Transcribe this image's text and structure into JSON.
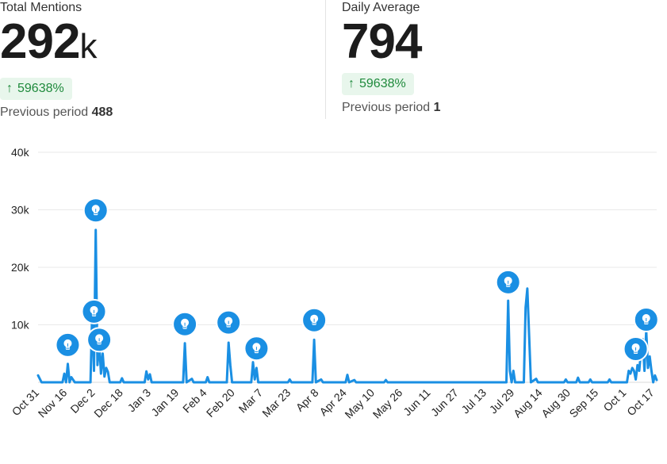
{
  "stats": {
    "total": {
      "label": "Total Mentions",
      "value": "292",
      "unit": "k",
      "change": "59638%",
      "previous_label": "Previous period",
      "previous_value": "488"
    },
    "daily": {
      "label": "Daily Average",
      "value": "794",
      "change": "59638%",
      "previous_label": "Previous period",
      "previous_value": "1"
    }
  },
  "colors": {
    "line": "#1a8fe3",
    "badge_bg": "#e8f6ec",
    "badge_text": "#1f8a3c",
    "grid": "#e9e9e9"
  },
  "chart_data": {
    "type": "line",
    "title": "",
    "xlabel": "",
    "ylabel": "",
    "ylim": [
      0,
      40000
    ],
    "yticks": [
      10000,
      20000,
      30000,
      40000
    ],
    "ytick_labels": [
      "10k",
      "20k",
      "30k",
      "40k"
    ],
    "xtick_labels": [
      "Oct 31",
      "Nov 16",
      "Dec 2",
      "Dec 18",
      "Jan 3",
      "Jan 19",
      "Feb 4",
      "Feb 20",
      "Mar 7",
      "Mar 23",
      "Apr 8",
      "Apr 24",
      "May 10",
      "May 26",
      "Jun 11",
      "Jun 27",
      "Jul 13",
      "Jul 29",
      "Aug 14",
      "Aug 30",
      "Sep 15",
      "Oct 1",
      "Oct 17"
    ],
    "grid": true,
    "series": [
      {
        "values": [
          {
            "day": 0,
            "y": 1200
          },
          {
            "day": 2,
            "y": 0
          },
          {
            "day": 14,
            "y": 0
          },
          {
            "day": 15,
            "y": 1500
          },
          {
            "day": 16,
            "y": 0
          },
          {
            "day": 17,
            "y": 3200
          },
          {
            "day": 18,
            "y": 0
          },
          {
            "day": 19,
            "y": 900
          },
          {
            "day": 21,
            "y": 0
          },
          {
            "day": 30,
            "y": 0
          },
          {
            "day": 31,
            "y": 12500
          },
          {
            "day": 32,
            "y": 2000
          },
          {
            "day": 33,
            "y": 26500
          },
          {
            "day": 34,
            "y": 3000
          },
          {
            "day": 35,
            "y": 7000
          },
          {
            "day": 36,
            "y": 1500
          },
          {
            "day": 37,
            "y": 5000
          },
          {
            "day": 38,
            "y": 1000
          },
          {
            "day": 39,
            "y": 2500
          },
          {
            "day": 40,
            "y": 1800
          },
          {
            "day": 41,
            "y": 0
          },
          {
            "day": 47,
            "y": 0
          },
          {
            "day": 48,
            "y": 700
          },
          {
            "day": 49,
            "y": 0
          },
          {
            "day": 61,
            "y": 0
          },
          {
            "day": 62,
            "y": 1900
          },
          {
            "day": 63,
            "y": 500
          },
          {
            "day": 64,
            "y": 1400
          },
          {
            "day": 65,
            "y": 0
          },
          {
            "day": 83,
            "y": 0
          },
          {
            "day": 84,
            "y": 6800
          },
          {
            "day": 85,
            "y": 0
          },
          {
            "day": 88,
            "y": 600
          },
          {
            "day": 89,
            "y": 0
          },
          {
            "day": 96,
            "y": 0
          },
          {
            "day": 97,
            "y": 900
          },
          {
            "day": 98,
            "y": 0
          },
          {
            "day": 108,
            "y": 0
          },
          {
            "day": 109,
            "y": 6900
          },
          {
            "day": 110,
            "y": 3000
          },
          {
            "day": 111,
            "y": 0
          },
          {
            "day": 122,
            "y": 0
          },
          {
            "day": 123,
            "y": 3500
          },
          {
            "day": 124,
            "y": 500
          },
          {
            "day": 125,
            "y": 2500
          },
          {
            "day": 126,
            "y": 0
          },
          {
            "day": 143,
            "y": 0
          },
          {
            "day": 144,
            "y": 500
          },
          {
            "day": 145,
            "y": 0
          },
          {
            "day": 157,
            "y": 0
          },
          {
            "day": 158,
            "y": 7400
          },
          {
            "day": 159,
            "y": 0
          },
          {
            "day": 162,
            "y": 500
          },
          {
            "day": 163,
            "y": 0
          },
          {
            "day": 176,
            "y": 0
          },
          {
            "day": 177,
            "y": 1300
          },
          {
            "day": 178,
            "y": 0
          },
          {
            "day": 181,
            "y": 400
          },
          {
            "day": 182,
            "y": 0
          },
          {
            "day": 198,
            "y": 0
          },
          {
            "day": 199,
            "y": 400
          },
          {
            "day": 200,
            "y": 0
          },
          {
            "day": 268,
            "y": 0
          },
          {
            "day": 269,
            "y": 14200
          },
          {
            "day": 270,
            "y": 2000
          },
          {
            "day": 271,
            "y": 0
          },
          {
            "day": 272,
            "y": 2000
          },
          {
            "day": 273,
            "y": 0
          },
          {
            "day": 278,
            "y": 0
          },
          {
            "day": 279,
            "y": 13000
          },
          {
            "day": 280,
            "y": 16300
          },
          {
            "day": 281,
            "y": 8000
          },
          {
            "day": 282,
            "y": 0
          },
          {
            "day": 285,
            "y": 600
          },
          {
            "day": 286,
            "y": 0
          },
          {
            "day": 301,
            "y": 0
          },
          {
            "day": 302,
            "y": 500
          },
          {
            "day": 303,
            "y": 0
          },
          {
            "day": 308,
            "y": 0
          },
          {
            "day": 309,
            "y": 800
          },
          {
            "day": 310,
            "y": 0
          },
          {
            "day": 315,
            "y": 0
          },
          {
            "day": 316,
            "y": 500
          },
          {
            "day": 317,
            "y": 0
          },
          {
            "day": 326,
            "y": 0
          },
          {
            "day": 327,
            "y": 500
          },
          {
            "day": 328,
            "y": 0
          },
          {
            "day": 337,
            "y": 0
          },
          {
            "day": 338,
            "y": 2000
          },
          {
            "day": 339,
            "y": 1500
          },
          {
            "day": 340,
            "y": 2500
          },
          {
            "day": 341,
            "y": 2000
          },
          {
            "day": 342,
            "y": 500
          },
          {
            "day": 343,
            "y": 3000
          },
          {
            "day": 344,
            "y": 2000
          },
          {
            "day": 345,
            "y": 5500
          },
          {
            "day": 346,
            "y": 7500
          },
          {
            "day": 347,
            "y": 2000
          },
          {
            "day": 348,
            "y": 9000
          },
          {
            "day": 349,
            "y": 2500
          },
          {
            "day": 350,
            "y": 4500
          },
          {
            "day": 351,
            "y": 2000
          },
          {
            "day": 352,
            "y": 0
          },
          {
            "day": 353,
            "y": 1200
          },
          {
            "day": 354,
            "y": 400
          }
        ]
      }
    ],
    "insight_markers": [
      {
        "day": 17,
        "y": 6500,
        "icon": "lightbulb-icon"
      },
      {
        "day": 32,
        "y": 12300,
        "icon": "lightbulb-icon"
      },
      {
        "day": 33,
        "y": 29900,
        "icon": "lightbulb-icon"
      },
      {
        "day": 35,
        "y": 7400,
        "icon": "lightbulb-icon"
      },
      {
        "day": 84,
        "y": 10100,
        "icon": "lightbulb-icon"
      },
      {
        "day": 109,
        "y": 10400,
        "icon": "lightbulb-icon"
      },
      {
        "day": 125,
        "y": 5900,
        "icon": "lightbulb-icon"
      },
      {
        "day": 158,
        "y": 10800,
        "icon": "lightbulb-icon"
      },
      {
        "day": 269,
        "y": 17400,
        "icon": "lightbulb-icon"
      },
      {
        "day": 342,
        "y": 5800,
        "icon": "lightbulb-icon"
      },
      {
        "day": 348,
        "y": 10900,
        "icon": "lightbulb-icon"
      }
    ]
  }
}
